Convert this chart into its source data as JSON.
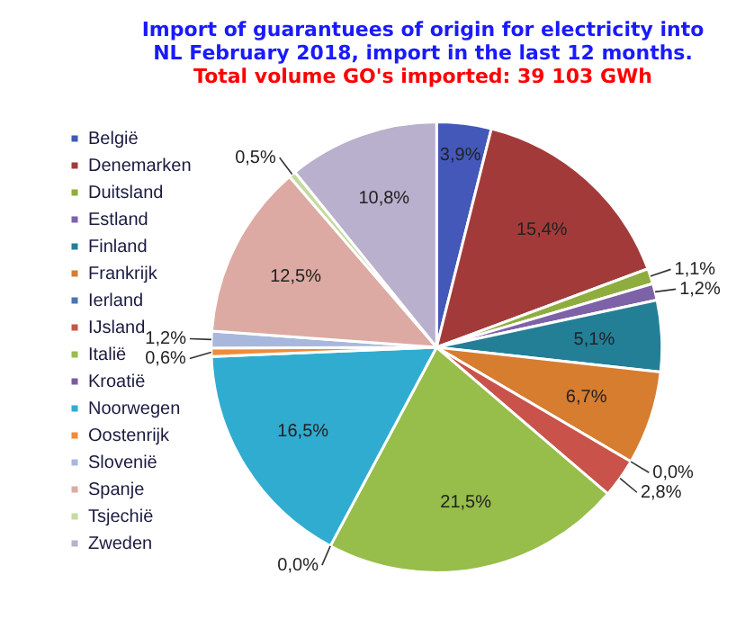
{
  "chart_data": {
    "type": "pie",
    "title": "Import of guarantuees of origin for electricity into NL February 2018, import in the last 12 months.",
    "subtitle": "Total volume GO's imported: 39 103 GWh",
    "categories": [
      "België",
      "Denemarken",
      "Duitsland",
      "Estland",
      "Finland",
      "Frankrijk",
      "Ierland",
      "IJsland",
      "Italië",
      "Kroatië",
      "Noorwegen",
      "Oostenrijk",
      "Slovenië",
      "Spanje",
      "Tsjechië",
      "Zweden"
    ],
    "values": [
      3.9,
      15.4,
      1.1,
      1.2,
      5.1,
      6.7,
      0.0,
      2.8,
      21.5,
      0.0,
      16.5,
      0.6,
      1.2,
      12.5,
      0.5,
      10.8
    ],
    "value_labels": [
      "3,9%",
      "15,4%",
      "1,1%",
      "1,2%",
      "5,1%",
      "6,7%",
      "0,0%",
      "2,8%",
      "21,5%",
      "0,0%",
      "16,5%",
      "0,6%",
      "1,2%",
      "12,5%",
      "0,5%",
      "10,8%"
    ],
    "colors": [
      "#4358b8",
      "#a33a3a",
      "#8fac3e",
      "#7d62a8",
      "#237f96",
      "#d67d30",
      "#4a74b8",
      "#c9534a",
      "#97bd4a",
      "#7a5c9e",
      "#30acd0",
      "#f08b3a",
      "#a8b8dc",
      "#dcaaa2",
      "#c4dba0",
      "#b8b0cc"
    ],
    "legend": "left"
  }
}
